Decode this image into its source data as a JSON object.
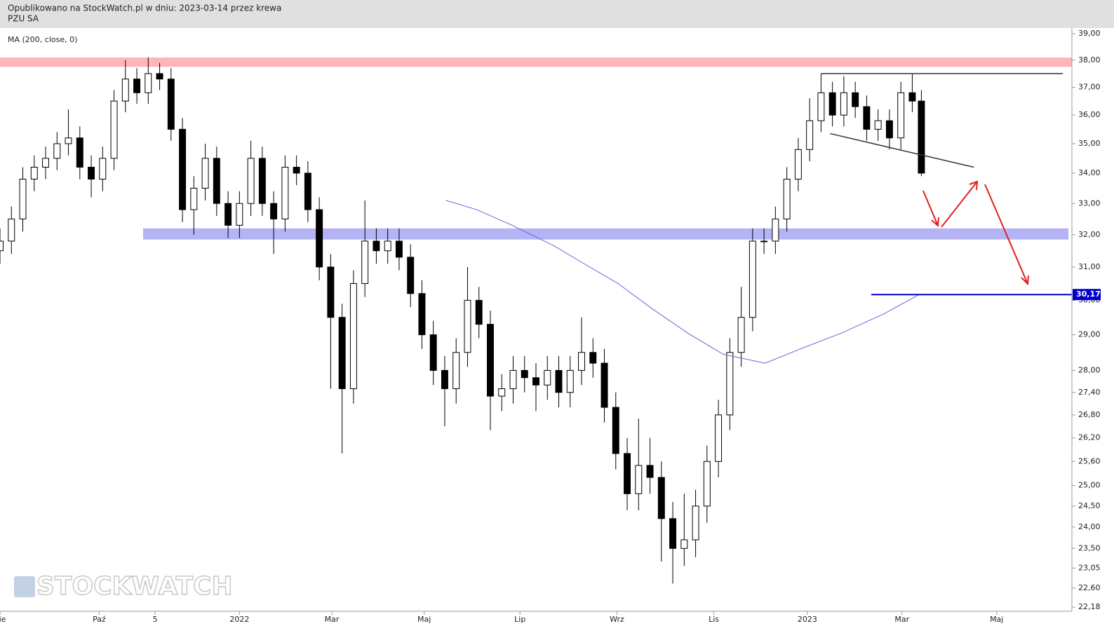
{
  "header": {
    "published": "Opublikowano na StockWatch.pl w dniu: 2023-03-14 przez krewa",
    "symbol": "PZU SA",
    "watermark": "STOCKWATCH"
  },
  "chart_data": {
    "type": "candlestick",
    "indicator": {
      "name": "MA (200, close, 0)",
      "color": "#6666dd",
      "x": [
        39.1,
        41.8,
        44.9,
        48.6,
        51.7,
        54.2,
        57.2,
        60.3,
        63.4,
        67.1,
        70.2,
        73.8,
        77.5,
        80.6
      ],
      "values": [
        33.1,
        32.8,
        32.3,
        31.65,
        31.0,
        30.5,
        29.75,
        29.05,
        28.45,
        28.2,
        28.6,
        29.05,
        29.6,
        30.17
      ]
    },
    "x": [
      0,
      1,
      2,
      3,
      4,
      5,
      6,
      7,
      8,
      9,
      10,
      11,
      12,
      13,
      14,
      15,
      16,
      17,
      18,
      19,
      20,
      21,
      22,
      23,
      24,
      25,
      26,
      27,
      28,
      29,
      30,
      31,
      32,
      33,
      34,
      35,
      36,
      37,
      38,
      39,
      40,
      41,
      42,
      43,
      44,
      45,
      46,
      47,
      48,
      49,
      50,
      51,
      52,
      53,
      54,
      55,
      56,
      57,
      58,
      59,
      60,
      61,
      62,
      63,
      64,
      65,
      66,
      67,
      68,
      69,
      70,
      71,
      72,
      73,
      74,
      75,
      76,
      77,
      78,
      79,
      80,
      80.8
    ],
    "open": [
      31.5,
      31.8,
      32.5,
      33.8,
      34.2,
      34.5,
      35.0,
      35.2,
      34.2,
      33.8,
      34.5,
      36.5,
      37.3,
      36.8,
      37.5,
      37.3,
      35.5,
      32.8,
      33.5,
      34.5,
      33.0,
      32.3,
      33.0,
      34.5,
      33.0,
      32.5,
      34.2,
      34.0,
      32.8,
      31.0,
      29.5,
      27.5,
      30.5,
      31.8,
      31.5,
      31.8,
      31.3,
      30.2,
      29.0,
      28.0,
      27.5,
      28.5,
      30.0,
      29.3,
      27.3,
      27.5,
      28.0,
      27.8,
      27.6,
      28.0,
      27.4,
      28.0,
      28.5,
      28.2,
      27.0,
      25.8,
      24.8,
      25.5,
      25.2,
      24.2,
      23.5,
      23.7,
      24.5,
      25.6,
      26.8,
      28.5,
      29.5,
      31.8,
      31.8,
      32.5,
      33.8,
      34.8,
      35.8,
      36.8,
      36.0,
      36.8,
      36.3,
      35.5,
      35.8,
      35.2,
      36.8,
      36.5
    ],
    "high": [
      32.2,
      32.9,
      34.2,
      34.6,
      34.9,
      35.4,
      36.2,
      35.6,
      34.6,
      34.9,
      36.9,
      38.0,
      37.7,
      38.1,
      37.9,
      37.7,
      35.9,
      33.9,
      35.0,
      34.9,
      33.4,
      33.4,
      35.1,
      34.9,
      33.4,
      34.6,
      34.6,
      34.4,
      33.2,
      31.4,
      29.9,
      30.9,
      33.1,
      32.2,
      32.2,
      32.2,
      31.7,
      30.6,
      29.4,
      28.4,
      28.9,
      31.0,
      30.4,
      29.7,
      27.9,
      28.4,
      28.4,
      28.2,
      28.4,
      28.4,
      28.4,
      29.5,
      28.9,
      28.6,
      27.4,
      26.2,
      26.7,
      26.2,
      25.6,
      24.6,
      24.8,
      24.9,
      26.0,
      27.2,
      28.9,
      30.4,
      32.2,
      32.2,
      32.9,
      34.2,
      35.2,
      36.6,
      37.5,
      37.2,
      37.4,
      37.2,
      36.7,
      36.2,
      36.2,
      37.2,
      37.5,
      36.9
    ],
    "low": [
      31.1,
      31.4,
      32.1,
      33.4,
      33.8,
      34.1,
      34.6,
      33.8,
      33.2,
      33.4,
      34.1,
      36.1,
      36.4,
      36.4,
      36.9,
      35.1,
      32.4,
      32.0,
      33.1,
      32.6,
      31.9,
      31.9,
      32.6,
      32.6,
      31.4,
      32.1,
      33.6,
      32.4,
      30.6,
      27.5,
      25.8,
      27.1,
      30.1,
      31.1,
      31.1,
      30.9,
      29.8,
      28.6,
      27.6,
      26.5,
      27.1,
      28.1,
      28.9,
      26.4,
      26.9,
      27.1,
      27.4,
      26.9,
      27.2,
      27.0,
      27.0,
      27.6,
      27.8,
      26.6,
      25.4,
      24.4,
      24.4,
      24.8,
      23.2,
      22.7,
      23.1,
      23.3,
      24.1,
      25.2,
      26.4,
      28.1,
      29.1,
      31.4,
      31.4,
      32.1,
      33.4,
      34.4,
      35.4,
      35.6,
      35.6,
      35.9,
      35.1,
      35.1,
      34.8,
      34.8,
      36.1,
      33.9
    ],
    "close": [
      31.8,
      32.5,
      33.8,
      34.2,
      34.5,
      35.0,
      35.2,
      34.2,
      33.8,
      34.5,
      36.5,
      37.3,
      36.8,
      37.5,
      37.3,
      35.5,
      32.8,
      33.5,
      34.5,
      33.0,
      32.3,
      33.0,
      34.5,
      33.0,
      32.5,
      34.2,
      34.0,
      32.8,
      31.0,
      29.5,
      27.5,
      30.5,
      31.8,
      31.5,
      31.8,
      31.3,
      30.2,
      29.0,
      28.0,
      27.5,
      28.5,
      30.0,
      29.3,
      27.3,
      27.5,
      28.0,
      27.8,
      27.6,
      28.0,
      27.4,
      28.0,
      28.5,
      28.2,
      27.0,
      25.8,
      24.8,
      25.5,
      25.2,
      24.2,
      23.5,
      23.7,
      24.5,
      25.6,
      26.8,
      28.5,
      29.5,
      31.8,
      31.8,
      32.5,
      33.8,
      34.8,
      35.8,
      36.8,
      36.0,
      36.8,
      36.3,
      35.5,
      35.8,
      35.2,
      36.8,
      36.5,
      34.0
    ],
    "up_color": "#ffffff",
    "down_color": "#000000",
    "edge_color": "#000000",
    "log_scale": true,
    "grid": false,
    "xlim": [
      0,
      94
    ],
    "xticks": [
      {
        "value": 0,
        "label": "Sie"
      },
      {
        "value": 8.7,
        "label": "Paź"
      },
      {
        "value": 13.6,
        "label": "5"
      },
      {
        "value": 21,
        "label": "2022"
      },
      {
        "value": 29.1,
        "label": "Mar"
      },
      {
        "value": 37.2,
        "label": "Maj"
      },
      {
        "value": 45.6,
        "label": "Lip"
      },
      {
        "value": 54.1,
        "label": "Wrz"
      },
      {
        "value": 62.6,
        "label": "Lis"
      },
      {
        "value": 70.8,
        "label": "2023"
      },
      {
        "value": 79.1,
        "label": "Mar"
      },
      {
        "value": 87.4,
        "label": "Maj"
      }
    ],
    "ylim": [
      22.09,
      39.22
    ],
    "yticks": [
      {
        "value": 39,
        "label": "39,00"
      },
      {
        "value": 38,
        "label": "38,00"
      },
      {
        "value": 37,
        "label": "37,00"
      },
      {
        "value": 36,
        "label": "36,00"
      },
      {
        "value": 35,
        "label": "35,00"
      },
      {
        "value": 34,
        "label": "34,00"
      },
      {
        "value": 33,
        "label": "33,00"
      },
      {
        "value": 32,
        "label": "32,00"
      },
      {
        "value": 31,
        "label": "31,00"
      },
      {
        "value": 30,
        "label": "30,00"
      },
      {
        "value": 29,
        "label": "29,00"
      },
      {
        "value": 28,
        "label": "28,00"
      },
      {
        "value": 27.4,
        "label": "27,40"
      },
      {
        "value": 26.8,
        "label": "26,80"
      },
      {
        "value": 26.2,
        "label": "26,20"
      },
      {
        "value": 25.6,
        "label": "25,60"
      },
      {
        "value": 25,
        "label": "25,00"
      },
      {
        "value": 24.5,
        "label": "24,50"
      },
      {
        "value": 24,
        "label": "24,00"
      },
      {
        "value": 23.5,
        "label": "23,50"
      },
      {
        "value": 23.05,
        "label": "23,05"
      },
      {
        "value": 22.6,
        "label": "22,60"
      },
      {
        "value": 22.18,
        "label": "22,18"
      }
    ],
    "bands": [
      {
        "from": 37.75,
        "to": 38.1,
        "x": [
          0,
          94
        ],
        "color": "#ffb6b9"
      },
      {
        "from": 31.85,
        "to": 32.2,
        "x": [
          12.55,
          93.7
        ],
        "color": "#b4b4f5"
      }
    ],
    "lines": [
      {
        "x": [
          72,
          93.2
        ],
        "y": [
          37.5,
          37.5
        ],
        "color": "#333333"
      },
      {
        "x": [
          72.8,
          85.4
        ],
        "y": [
          35.35,
          34.2
        ],
        "color": "#333333"
      }
    ],
    "level": {
      "value": 30.17,
      "label": "30,17",
      "x": [
        76.4,
        94
      ],
      "color": "#0000cc"
    }
  }
}
